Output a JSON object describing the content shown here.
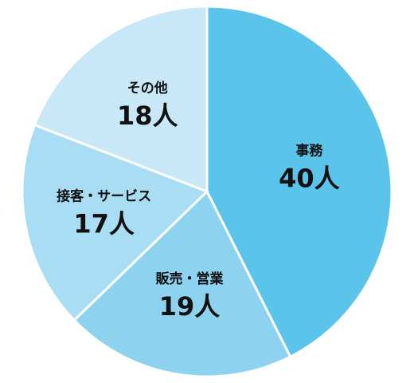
{
  "chart_data": {
    "type": "pie",
    "categories": [
      "事務",
      "販売・営業",
      "接客・サービス",
      "その他"
    ],
    "values": [
      40,
      19,
      17,
      18
    ],
    "value_labels": [
      "40人",
      "19人",
      "17人",
      "18人"
    ],
    "colors": [
      "#5bc4ea",
      "#8dd2ef",
      "#a9ddf3",
      "#c8e8f8"
    ]
  }
}
